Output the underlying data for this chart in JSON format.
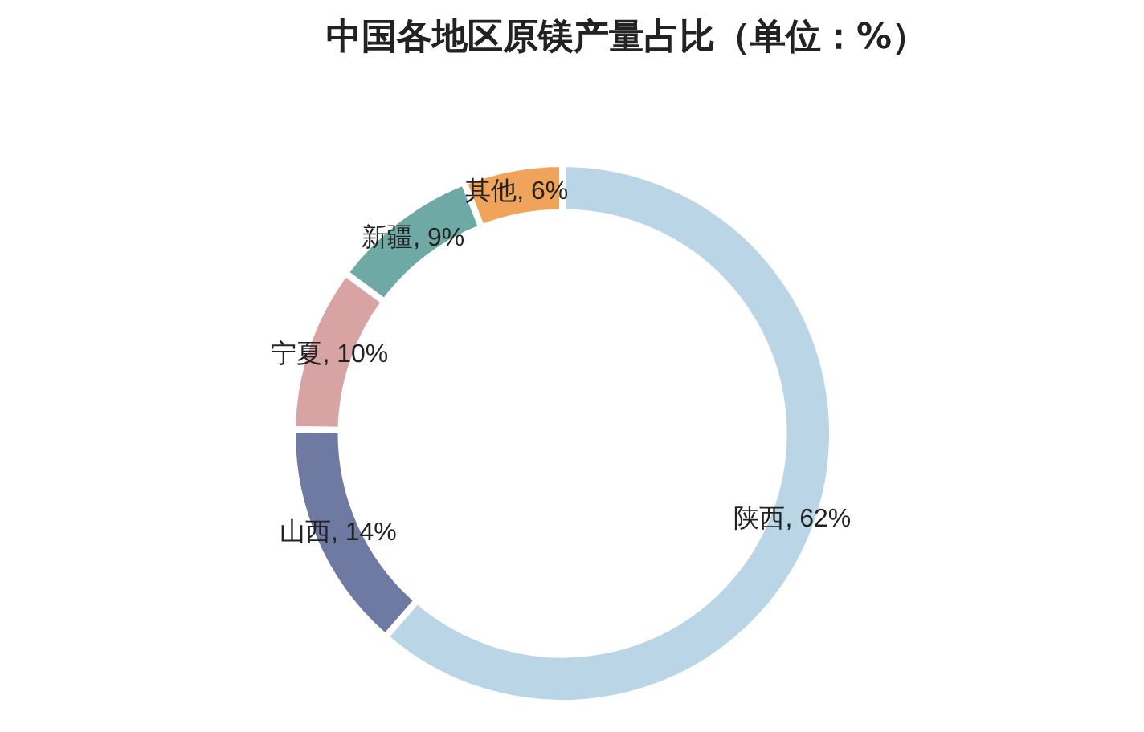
{
  "chart_data": {
    "type": "donut",
    "title": "中国各地区原镁产量占比（单位：%）",
    "categories": [
      "陕西",
      "山西",
      "宁夏",
      "新疆",
      "其他"
    ],
    "values": [
      62,
      14,
      10,
      9,
      6
    ],
    "colors": [
      "#b9d5e6",
      "#6f7aa3",
      "#d8a3a3",
      "#6fa9a6",
      "#f0a35a"
    ],
    "value_labels": [
      "62%",
      "14%",
      "10%",
      "9%",
      "6%"
    ],
    "legend": false
  }
}
